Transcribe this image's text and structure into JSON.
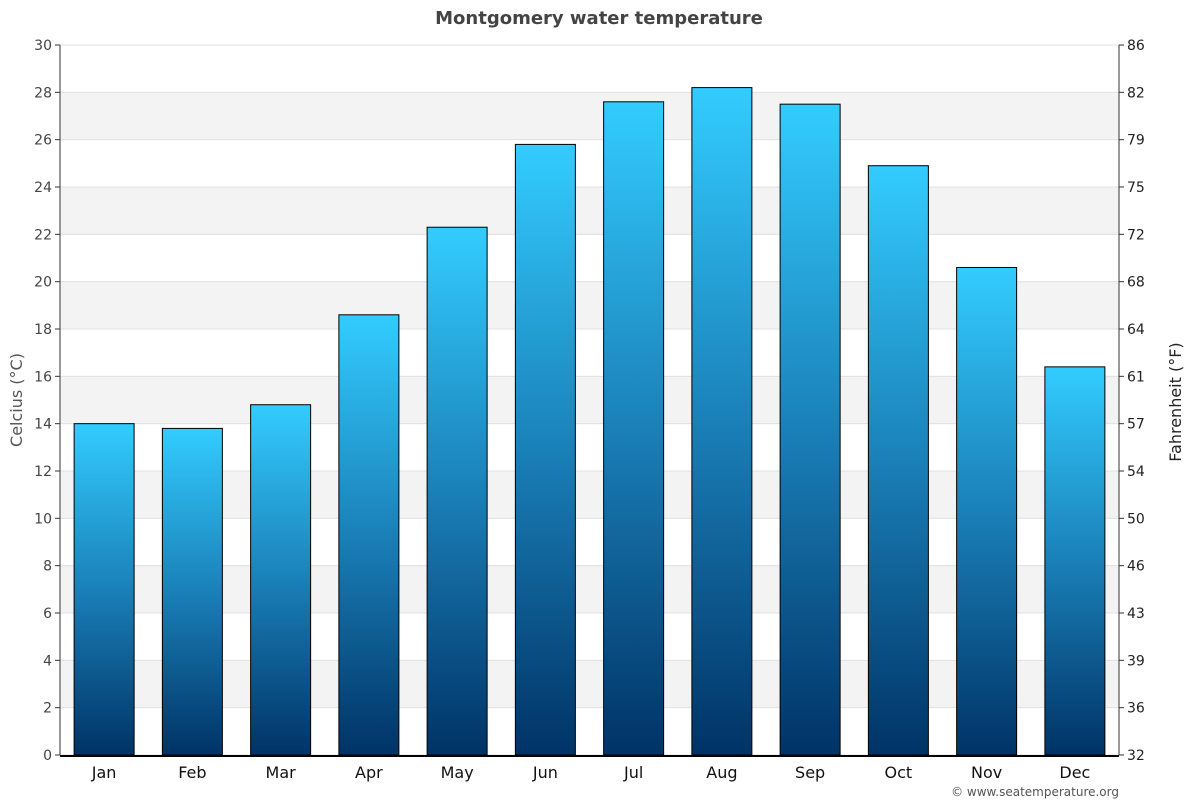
{
  "chart_data": {
    "type": "bar",
    "title": "Montgomery water temperature",
    "categories": [
      "Jan",
      "Feb",
      "Mar",
      "Apr",
      "May",
      "Jun",
      "Jul",
      "Aug",
      "Sep",
      "Oct",
      "Nov",
      "Dec"
    ],
    "values": [
      14.0,
      13.8,
      14.8,
      18.6,
      22.3,
      25.8,
      27.6,
      28.2,
      27.5,
      24.9,
      20.6,
      16.4
    ],
    "ylabel": "Celcius (°C)",
    "ylabel_right": "Fahrenheit (°F)",
    "ylim": [
      0,
      30
    ],
    "yticks": [
      "0",
      "2",
      "4",
      "6",
      "8",
      "10",
      "12",
      "14",
      "16",
      "18",
      "20",
      "22",
      "24",
      "26",
      "28",
      "30"
    ],
    "yticks_right": [
      "32",
      "36",
      "39",
      "43",
      "46",
      "50",
      "54",
      "57",
      "61",
      "64",
      "68",
      "72",
      "75",
      "79",
      "82",
      "86"
    ],
    "grid": true,
    "colors": {
      "bar_top": "#33ccff",
      "bar_bottom": "#003366",
      "band": "#f3f3f3",
      "grid": "#e0e0e0"
    },
    "credit": "© www.seatemperature.org"
  }
}
